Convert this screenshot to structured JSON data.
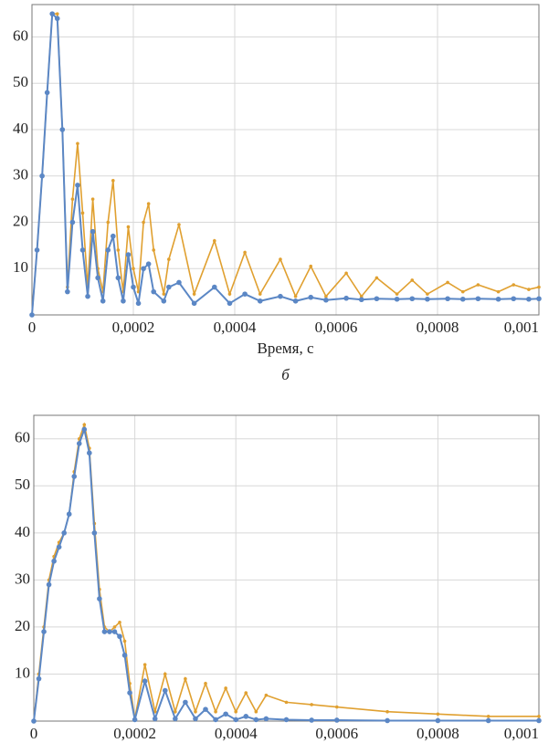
{
  "chart_data": [
    {
      "type": "line",
      "xlabel": "Время, с",
      "caption": "б",
      "x": [
        0,
        1e-05,
        2e-05,
        3e-05,
        4e-05,
        5e-05,
        6e-05,
        7e-05,
        8e-05,
        9e-05,
        0.0001,
        0.00011,
        0.00012,
        0.00013,
        0.00014,
        0.00015,
        0.00016,
        0.00017,
        0.00018,
        0.00019,
        0.0002,
        0.00021,
        0.00022,
        0.00023,
        0.00024,
        0.00026,
        0.00027,
        0.00029,
        0.00032,
        0.00036,
        0.00039,
        0.00042,
        0.00045,
        0.00049,
        0.00052,
        0.00055,
        0.00058,
        0.00062,
        0.00065,
        0.00068,
        0.00072,
        0.00075,
        0.00078,
        0.00082,
        0.00085,
        0.00088,
        0.00092,
        0.00095,
        0.00098,
        0.001
      ],
      "series": [
        {
          "color": "#e0a030",
          "values": [
            0,
            14,
            30,
            48,
            65,
            65,
            40,
            6,
            25,
            37,
            22,
            6,
            25,
            10,
            5,
            20,
            29,
            14,
            5,
            19,
            10,
            5,
            20,
            24,
            14,
            4.5,
            12,
            19.5,
            4.5,
            16,
            4.5,
            13.5,
            4.5,
            12,
            4,
            10.5,
            4,
            9,
            4,
            8,
            4.5,
            7.5,
            4.5,
            7,
            5,
            6.5,
            5,
            6.5,
            5.5,
            6
          ]
        },
        {
          "color": "#5b87c5",
          "values": [
            0,
            14,
            30,
            48,
            65,
            64,
            40,
            5,
            20,
            28,
            14,
            4,
            18,
            8,
            3,
            14,
            17,
            8,
            3,
            13,
            6,
            2.5,
            10,
            11,
            5,
            3,
            6,
            7,
            2.5,
            6,
            2.5,
            4.5,
            3,
            4,
            3,
            3.8,
            3.2,
            3.6,
            3.3,
            3.5,
            3.4,
            3.5,
            3.4,
            3.5,
            3.4,
            3.5,
            3.4,
            3.5,
            3.4,
            3.5
          ]
        }
      ],
      "xlim": [
        0,
        0.001
      ],
      "xticks": [
        0,
        {
          "value": 0.0002,
          "label": "0,0002"
        },
        {
          "value": 0.0004,
          "label": "0,0004"
        },
        {
          "value": 0.0006,
          "label": "0,0006"
        },
        {
          "value": 0.0008,
          "label": "0,0008"
        },
        {
          "value": 0.001,
          "label": "0,001"
        }
      ],
      "ylim": [
        0,
        67
      ],
      "yticks": [
        10,
        20,
        30,
        40,
        50,
        60
      ],
      "grid": true
    },
    {
      "type": "line",
      "x": [
        0,
        1e-05,
        2e-05,
        3e-05,
        4e-05,
        5e-05,
        6e-05,
        7e-05,
        8e-05,
        9e-05,
        0.0001,
        0.00011,
        0.00012,
        0.00013,
        0.00014,
        0.00015,
        0.00016,
        0.00017,
        0.00018,
        0.00019,
        0.0002,
        0.00022,
        0.00024,
        0.00026,
        0.00028,
        0.0003,
        0.00032,
        0.00034,
        0.00036,
        0.00038,
        0.0004,
        0.00042,
        0.00044,
        0.00046,
        0.0005,
        0.00055,
        0.0006,
        0.0007,
        0.0008,
        0.0009,
        0.001
      ],
      "series": [
        {
          "color": "#e0a030",
          "values": [
            0,
            10,
            20,
            30,
            35,
            38,
            40,
            44,
            53,
            60,
            63,
            58,
            42,
            28,
            20,
            19,
            20,
            21,
            17,
            8,
            0.5,
            12,
            2,
            10,
            2,
            9,
            2,
            8,
            2,
            7,
            2,
            6,
            2,
            5.5,
            4,
            3.5,
            3,
            2,
            1.5,
            1,
            1
          ]
        },
        {
          "color": "#5b87c5",
          "values": [
            0,
            9,
            19,
            29,
            34,
            37,
            40,
            44,
            52,
            59,
            62,
            57,
            40,
            26,
            19,
            19,
            19,
            18,
            14,
            6,
            0.3,
            8.5,
            0.5,
            6.5,
            0.5,
            4,
            0.5,
            2.5,
            0.3,
            1.5,
            0.3,
            1,
            0.3,
            0.5,
            0.3,
            0.2,
            0.2,
            0.1,
            0.1,
            0.1,
            0.1
          ]
        }
      ],
      "xlim": [
        0,
        0.001
      ],
      "xticks": [
        0,
        {
          "value": 0.0002,
          "label": "0,0002"
        },
        {
          "value": 0.0004,
          "label": "0,0004"
        },
        {
          "value": 0.0006,
          "label": "0,0006"
        },
        {
          "value": 0.0008,
          "label": "0,0008"
        },
        {
          "value": 0.001,
          "label": "0,001"
        }
      ],
      "ylim": [
        0,
        65
      ],
      "yticks": [
        10,
        20,
        30,
        40,
        50,
        60
      ],
      "grid": true
    }
  ]
}
